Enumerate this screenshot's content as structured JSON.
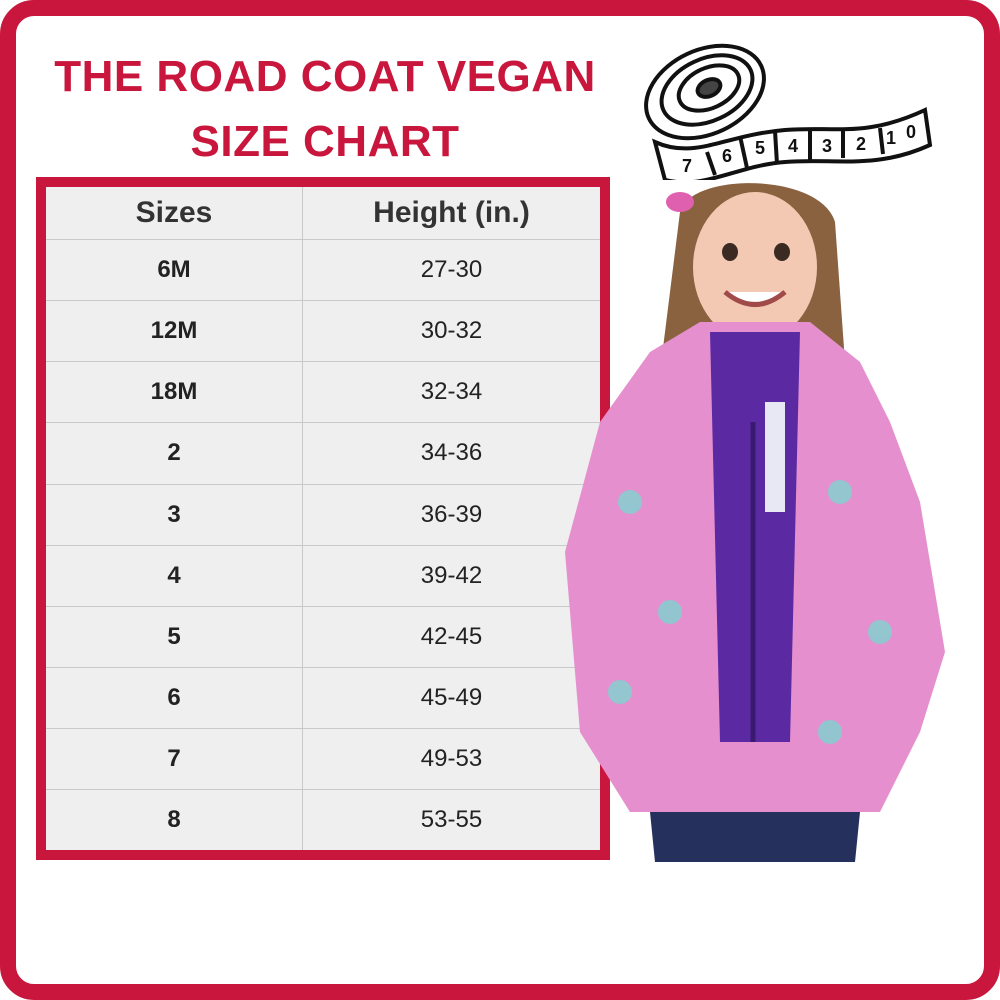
{
  "title": {
    "line1": "THE ROAD COAT VEGAN",
    "line2": "SIZE CHART"
  },
  "colors": {
    "accent": "#c8163d",
    "table_bg": "#efefef",
    "jacket": "#e58fce",
    "vest": "#5b2aa3"
  },
  "table": {
    "headers": [
      "Sizes",
      "Height (in.)"
    ],
    "rows": [
      {
        "size": "6M",
        "height": "27-30"
      },
      {
        "size": "12M",
        "height": "30-32"
      },
      {
        "size": "18M",
        "height": "32-34"
      },
      {
        "size": "2",
        "height": "34-36"
      },
      {
        "size": "3",
        "height": "36-39"
      },
      {
        "size": "4",
        "height": "39-42"
      },
      {
        "size": "5",
        "height": "42-45"
      },
      {
        "size": "6",
        "height": "45-49"
      },
      {
        "size": "7",
        "height": "49-53"
      },
      {
        "size": "8",
        "height": "53-55"
      }
    ]
  },
  "illustration": {
    "icon": "tape-measure-icon",
    "tape_numbers": [
      "7",
      "6",
      "5",
      "4",
      "3",
      "2",
      "1",
      "0"
    ]
  },
  "photo": {
    "subject": "child-in-pink-unicorn-jacket"
  }
}
